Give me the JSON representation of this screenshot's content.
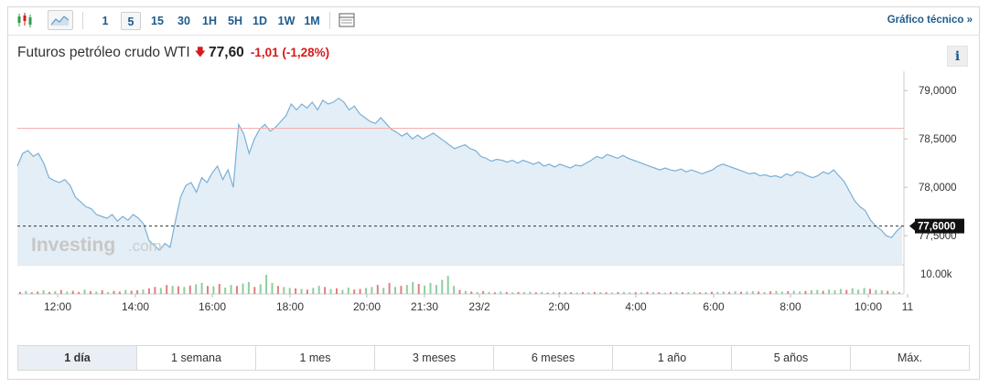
{
  "toolbar": {
    "intervals": [
      "1",
      "5",
      "15",
      "30",
      "1H",
      "5H",
      "1D",
      "1W",
      "1M"
    ],
    "active_interval": "5",
    "tech_link": "Gráfico técnico »",
    "icons": [
      "candlestick-icon",
      "area-chart-icon",
      "table-icon"
    ]
  },
  "header": {
    "name": "Futuros petróleo crudo WTI",
    "arrow": "🡇",
    "price": "77,60",
    "change": "-1,01",
    "change_pct": "(-1,28%)",
    "info": "i"
  },
  "chart_data": {
    "type": "area",
    "x_tick_labels": [
      "12:00",
      "14:00",
      "16:00",
      "18:00",
      "20:00",
      "21:30",
      "23/2",
      "2:00",
      "4:00",
      "6:00",
      "8:00",
      "10:00",
      "11"
    ],
    "y_tick_labels": [
      "79,0000",
      "78,5000",
      "78,0000",
      "77,5000"
    ],
    "y_ticks": [
      79.0,
      78.5,
      78.0,
      77.5
    ],
    "ylim": [
      77.2,
      79.2
    ],
    "current_value": 77.6,
    "current_label": "77,6000",
    "previous_close": 78.61,
    "volume_label": "10.00k",
    "watermark": "Investing.com",
    "colors": {
      "line": "#7ab0d6",
      "fill": "#e4eef6",
      "ref_line": "#f2b0b0",
      "vol_up": "#8ccf9c",
      "vol_down": "#e07f7f",
      "label_bg": "#111111"
    },
    "series": [
      {
        "values": [
          78.22,
          78.35,
          78.38,
          78.32,
          78.35,
          78.25,
          78.1,
          78.07,
          78.05,
          78.08,
          78.02,
          77.9,
          77.85,
          77.8,
          77.78,
          77.72,
          77.7,
          77.68,
          77.72,
          77.65,
          77.7,
          77.66,
          77.72,
          77.68,
          77.62,
          77.45,
          77.4,
          77.35,
          77.42,
          77.38,
          77.65,
          77.9,
          78.02,
          78.05,
          77.95,
          78.1,
          78.05,
          78.15,
          78.22,
          78.08,
          78.18,
          78.0,
          78.65,
          78.55,
          78.35,
          78.5,
          78.6,
          78.65,
          78.58,
          78.62,
          78.68,
          78.74,
          78.86,
          78.8,
          78.86,
          78.82,
          78.88,
          78.8,
          78.9,
          78.86,
          78.88,
          78.92,
          78.88,
          78.8,
          78.84,
          78.76,
          78.72,
          78.68,
          78.66,
          78.72,
          78.66,
          78.6,
          78.57,
          78.53,
          78.56,
          78.5,
          78.54,
          78.5,
          78.53,
          78.56,
          78.52,
          78.48,
          78.44,
          78.4,
          78.42,
          78.44,
          78.4,
          78.38,
          78.32,
          78.3,
          78.27,
          78.29,
          78.28,
          78.26,
          78.28,
          78.25,
          78.28,
          78.26,
          78.24,
          78.26,
          78.22,
          78.24,
          78.21,
          78.24,
          78.22,
          78.2,
          78.23,
          78.22,
          78.25,
          78.28,
          78.32,
          78.3,
          78.34,
          78.32,
          78.3,
          78.33,
          78.3,
          78.28,
          78.26,
          78.24,
          78.22,
          78.2,
          78.18,
          78.2,
          78.18,
          78.17,
          78.19,
          78.16,
          78.18,
          78.16,
          78.14,
          78.16,
          78.18,
          78.22,
          78.24,
          78.22,
          78.2,
          78.18,
          78.16,
          78.14,
          78.15,
          78.12,
          78.13,
          78.11,
          78.12,
          78.1,
          78.14,
          78.12,
          78.16,
          78.15,
          78.12,
          78.1,
          78.12,
          78.16,
          78.14,
          78.18,
          78.12,
          78.06,
          77.96,
          77.86,
          77.8,
          77.76,
          77.66,
          77.6,
          77.56,
          77.5,
          77.48,
          77.55,
          77.6
        ]
      }
    ],
    "volume": [
      {
        "v": 0.1,
        "d": 1
      },
      {
        "v": 0.15,
        "d": 0
      },
      {
        "v": 0.08,
        "d": 1
      },
      {
        "v": 0.12,
        "d": 1
      },
      {
        "v": 0.18,
        "d": 0
      },
      {
        "v": 0.1,
        "d": 1
      },
      {
        "v": 0.14,
        "d": 0
      },
      {
        "v": 0.2,
        "d": 1
      },
      {
        "v": 0.12,
        "d": 0
      },
      {
        "v": 0.16,
        "d": 1
      },
      {
        "v": 0.1,
        "d": 1
      },
      {
        "v": 0.22,
        "d": 0
      },
      {
        "v": 0.14,
        "d": 1
      },
      {
        "v": 0.12,
        "d": 0
      },
      {
        "v": 0.18,
        "d": 1
      },
      {
        "v": 0.1,
        "d": 0
      },
      {
        "v": 0.15,
        "d": 1
      },
      {
        "v": 0.12,
        "d": 1
      },
      {
        "v": 0.2,
        "d": 0
      },
      {
        "v": 0.16,
        "d": 1
      },
      {
        "v": 0.18,
        "d": 1
      },
      {
        "v": 0.22,
        "d": 0
      },
      {
        "v": 0.28,
        "d": 1
      },
      {
        "v": 0.35,
        "d": 1
      },
      {
        "v": 0.3,
        "d": 0
      },
      {
        "v": 0.45,
        "d": 1
      },
      {
        "v": 0.4,
        "d": 0
      },
      {
        "v": 0.38,
        "d": 1
      },
      {
        "v": 0.35,
        "d": 0
      },
      {
        "v": 0.42,
        "d": 1
      },
      {
        "v": 0.48,
        "d": 0
      },
      {
        "v": 0.55,
        "d": 0
      },
      {
        "v": 0.4,
        "d": 1
      },
      {
        "v": 0.38,
        "d": 0
      },
      {
        "v": 0.5,
        "d": 1
      },
      {
        "v": 0.32,
        "d": 0
      },
      {
        "v": 0.45,
        "d": 0
      },
      {
        "v": 0.4,
        "d": 1
      },
      {
        "v": 0.52,
        "d": 0
      },
      {
        "v": 0.6,
        "d": 0
      },
      {
        "v": 0.35,
        "d": 1
      },
      {
        "v": 0.48,
        "d": 0
      },
      {
        "v": 0.95,
        "d": 0
      },
      {
        "v": 0.55,
        "d": 0
      },
      {
        "v": 0.4,
        "d": 1
      },
      {
        "v": 0.35,
        "d": 0
      },
      {
        "v": 0.3,
        "d": 0
      },
      {
        "v": 0.28,
        "d": 1
      },
      {
        "v": 0.25,
        "d": 0
      },
      {
        "v": 0.22,
        "d": 1
      },
      {
        "v": 0.3,
        "d": 0
      },
      {
        "v": 0.4,
        "d": 0
      },
      {
        "v": 0.35,
        "d": 1
      },
      {
        "v": 0.25,
        "d": 0
      },
      {
        "v": 0.28,
        "d": 1
      },
      {
        "v": 0.2,
        "d": 0
      },
      {
        "v": 0.32,
        "d": 0
      },
      {
        "v": 0.22,
        "d": 1
      },
      {
        "v": 0.25,
        "d": 1
      },
      {
        "v": 0.3,
        "d": 0
      },
      {
        "v": 0.35,
        "d": 0
      },
      {
        "v": 0.45,
        "d": 1
      },
      {
        "v": 0.3,
        "d": 0
      },
      {
        "v": 0.55,
        "d": 1
      },
      {
        "v": 0.35,
        "d": 0
      },
      {
        "v": 0.4,
        "d": 1
      },
      {
        "v": 0.45,
        "d": 0
      },
      {
        "v": 0.6,
        "d": 0
      },
      {
        "v": 0.5,
        "d": 1
      },
      {
        "v": 0.42,
        "d": 0
      },
      {
        "v": 0.55,
        "d": 0
      },
      {
        "v": 0.45,
        "d": 0
      },
      {
        "v": 0.7,
        "d": 0
      },
      {
        "v": 0.9,
        "d": 0
      },
      {
        "v": 0.4,
        "d": 0
      },
      {
        "v": 0.2,
        "d": 1
      },
      {
        "v": 0.15,
        "d": 0
      },
      {
        "v": 0.12,
        "d": 1
      },
      {
        "v": 0.1,
        "d": 0
      },
      {
        "v": 0.14,
        "d": 1
      },
      {
        "v": 0.1,
        "d": 0
      },
      {
        "v": 0.08,
        "d": 1
      },
      {
        "v": 0.12,
        "d": 0
      },
      {
        "v": 0.1,
        "d": 1
      },
      {
        "v": 0.08,
        "d": 0
      },
      {
        "v": 0.1,
        "d": 1
      },
      {
        "v": 0.09,
        "d": 0
      },
      {
        "v": 0.11,
        "d": 0
      },
      {
        "v": 0.08,
        "d": 1
      },
      {
        "v": 0.1,
        "d": 0
      },
      {
        "v": 0.07,
        "d": 1
      },
      {
        "v": 0.09,
        "d": 0
      },
      {
        "v": 0.08,
        "d": 1
      },
      {
        "v": 0.1,
        "d": 0
      },
      {
        "v": 0.08,
        "d": 1
      },
      {
        "v": 0.07,
        "d": 0
      },
      {
        "v": 0.09,
        "d": 1
      },
      {
        "v": 0.08,
        "d": 0
      },
      {
        "v": 0.1,
        "d": 1
      },
      {
        "v": 0.09,
        "d": 0
      },
      {
        "v": 0.08,
        "d": 1
      },
      {
        "v": 0.07,
        "d": 0
      },
      {
        "v": 0.09,
        "d": 1
      },
      {
        "v": 0.1,
        "d": 0
      },
      {
        "v": 0.08,
        "d": 0
      },
      {
        "v": 0.09,
        "d": 1
      },
      {
        "v": 0.08,
        "d": 0
      },
      {
        "v": 0.1,
        "d": 1
      },
      {
        "v": 0.09,
        "d": 0
      },
      {
        "v": 0.08,
        "d": 1
      },
      {
        "v": 0.07,
        "d": 0
      },
      {
        "v": 0.09,
        "d": 1
      },
      {
        "v": 0.1,
        "d": 0
      },
      {
        "v": 0.08,
        "d": 1
      },
      {
        "v": 0.09,
        "d": 0
      },
      {
        "v": 0.1,
        "d": 0
      },
      {
        "v": 0.08,
        "d": 1
      },
      {
        "v": 0.09,
        "d": 0
      },
      {
        "v": 0.11,
        "d": 1
      },
      {
        "v": 0.1,
        "d": 0
      },
      {
        "v": 0.12,
        "d": 0
      },
      {
        "v": 0.1,
        "d": 1
      },
      {
        "v": 0.13,
        "d": 0
      },
      {
        "v": 0.11,
        "d": 1
      },
      {
        "v": 0.12,
        "d": 0
      },
      {
        "v": 0.14,
        "d": 0
      },
      {
        "v": 0.12,
        "d": 1
      },
      {
        "v": 0.1,
        "d": 0
      },
      {
        "v": 0.13,
        "d": 1
      },
      {
        "v": 0.15,
        "d": 0
      },
      {
        "v": 0.12,
        "d": 0
      },
      {
        "v": 0.14,
        "d": 1
      },
      {
        "v": 0.16,
        "d": 0
      },
      {
        "v": 0.12,
        "d": 0
      },
      {
        "v": 0.15,
        "d": 1
      },
      {
        "v": 0.18,
        "d": 0
      },
      {
        "v": 0.2,
        "d": 0
      },
      {
        "v": 0.16,
        "d": 1
      },
      {
        "v": 0.22,
        "d": 0
      },
      {
        "v": 0.18,
        "d": 0
      },
      {
        "v": 0.25,
        "d": 0
      },
      {
        "v": 0.2,
        "d": 1
      },
      {
        "v": 0.28,
        "d": 0
      },
      {
        "v": 0.22,
        "d": 0
      },
      {
        "v": 0.3,
        "d": 0
      },
      {
        "v": 0.25,
        "d": 1
      },
      {
        "v": 0.2,
        "d": 0
      },
      {
        "v": 0.18,
        "d": 0
      },
      {
        "v": 0.15,
        "d": 1
      },
      {
        "v": 0.12,
        "d": 0
      },
      {
        "v": 0.1,
        "d": 0
      }
    ]
  },
  "periods": [
    "1 día",
    "1 semana",
    "1 mes",
    "3 meses",
    "6 meses",
    "1 año",
    "5 años",
    "Máx."
  ],
  "active_period": 0
}
